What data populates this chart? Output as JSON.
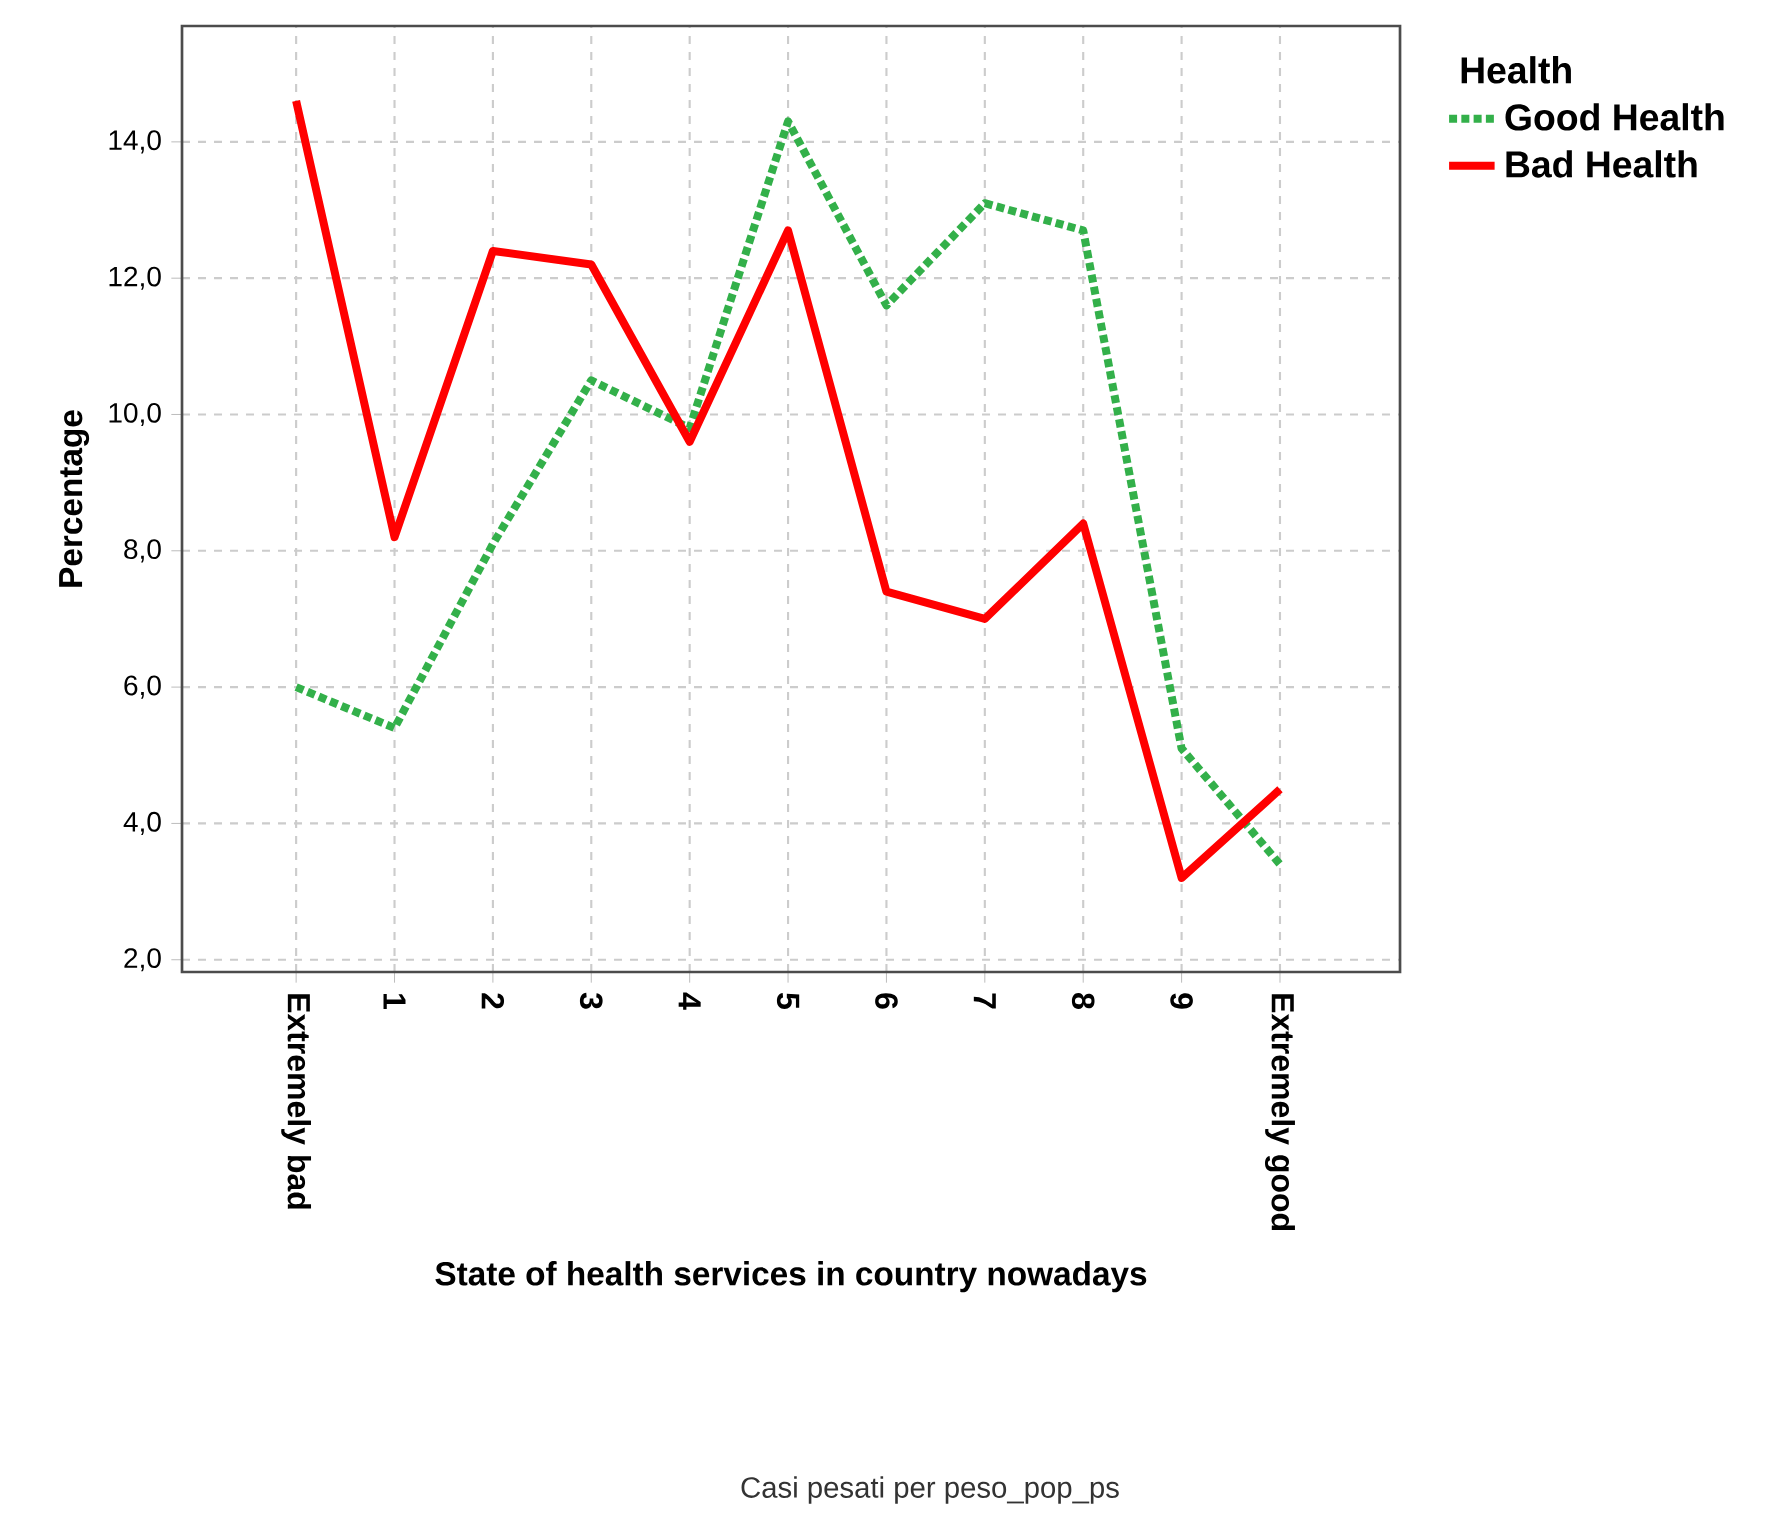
{
  "chart_data": {
    "type": "line",
    "xlabel": "State of health services in country nowadays",
    "ylabel": "Percentage",
    "legend_title": "Health",
    "annotations": [
      "Casi pesati per peso_pop_ps"
    ],
    "categories": [
      "Extremely bad",
      "1",
      "2",
      "3",
      "4",
      "5",
      "6",
      "7",
      "8",
      "9",
      "Extremely good"
    ],
    "series": [
      {
        "name": "Good Health",
        "color": "#33b04a",
        "line_style": "dotted",
        "values": [
          6.0,
          5.4,
          8.1,
          10.5,
          9.8,
          14.3,
          11.6,
          13.1,
          12.7,
          5.1,
          3.4
        ]
      },
      {
        "name": "Bad Health",
        "color": "#ff0000",
        "line_style": "solid",
        "values": [
          14.6,
          8.2,
          12.4,
          12.2,
          9.6,
          12.7,
          7.4,
          7.0,
          8.4,
          3.2,
          4.5
        ]
      }
    ],
    "ylim": [
      1.82,
      15.7
    ],
    "yticks": [
      {
        "value": 2,
        "label": "2,0"
      },
      {
        "value": 4,
        "label": "4,0"
      },
      {
        "value": 6,
        "label": "6,0"
      },
      {
        "value": 8,
        "label": "8,0"
      },
      {
        "value": 10,
        "label": "10,0"
      },
      {
        "value": 12,
        "label": "12,0"
      },
      {
        "value": 14,
        "label": "14,0"
      }
    ],
    "grid": true,
    "legend": "right",
    "marker": "none"
  }
}
